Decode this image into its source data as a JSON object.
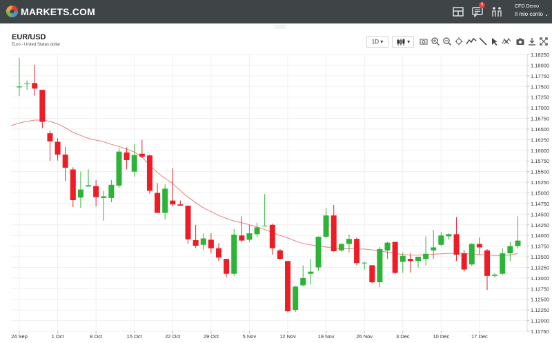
{
  "header": {
    "brand": "MARKETS.COM",
    "notification_count": "6",
    "account_mode": "CFD Demo",
    "account_name": "Il mio conto"
  },
  "instrument": {
    "symbol": "EUR/USD",
    "description": "Euro - United States dollar"
  },
  "toolbar": {
    "timeframe": "1D",
    "icons": [
      "chart-type-icon",
      "screenshot-icon",
      "zoom-in-icon",
      "zoom-out-icon",
      "crosshair-icon",
      "indicator-icon",
      "draw-line-icon",
      "cursor-icon",
      "remove-drawings-icon",
      "camera-icon",
      "download-icon",
      "fullscreen-icon"
    ]
  },
  "colors": {
    "up": "#2db337",
    "down": "#ee1c25",
    "ma_line": "#ef7b7b",
    "topbar": "#3f4447"
  },
  "chart_data": {
    "type": "candlestick",
    "title": "EUR/USD",
    "ylim": [
      1.1175,
      1.1825
    ],
    "y_ticks": [
      "1.18250",
      "1.18000",
      "1.17750",
      "1.17500",
      "1.17250",
      "1.17000",
      "1.16750",
      "1.16500",
      "1.16250",
      "1.16000",
      "1.15750",
      "1.15500",
      "1.15250",
      "1.15000",
      "1.14750",
      "1.14500",
      "1.14250",
      "1.14000",
      "1.13750",
      "1.13500",
      "1.13250",
      "1.13000",
      "1.12750",
      "1.12500",
      "1.12250",
      "1.12000",
      "1.11750"
    ],
    "x_ticks": [
      {
        "label": "24 Sep",
        "index": 0
      },
      {
        "label": "1 Oct",
        "index": 5
      },
      {
        "label": "8 Oct",
        "index": 10
      },
      {
        "label": "15 Oct",
        "index": 15
      },
      {
        "label": "22 Oct",
        "index": 20
      },
      {
        "label": "29 Oct",
        "index": 25
      },
      {
        "label": "5 Nov",
        "index": 30
      },
      {
        "label": "12 Nov",
        "index": 35
      },
      {
        "label": "19 Nov",
        "index": 40
      },
      {
        "label": "26 Nov",
        "index": 45
      },
      {
        "label": "3 Dec",
        "index": 50
      },
      {
        "label": "10 Dec",
        "index": 55
      },
      {
        "label": "17 Dec",
        "index": 60
      }
    ],
    "candles": [
      {
        "o": 1.1748,
        "h": 1.1817,
        "l": 1.1728,
        "c": 1.175
      },
      {
        "o": 1.1756,
        "h": 1.1764,
        "l": 1.1742,
        "c": 1.1757
      },
      {
        "o": 1.1758,
        "h": 1.1801,
        "l": 1.1728,
        "c": 1.1745
      },
      {
        "o": 1.1742,
        "h": 1.1742,
        "l": 1.1652,
        "c": 1.1667
      },
      {
        "o": 1.164,
        "h": 1.1646,
        "l": 1.1575,
        "c": 1.1621
      },
      {
        "o": 1.162,
        "h": 1.1628,
        "l": 1.1576,
        "c": 1.159
      },
      {
        "o": 1.159,
        "h": 1.1608,
        "l": 1.1528,
        "c": 1.1559
      },
      {
        "o": 1.1555,
        "h": 1.156,
        "l": 1.1467,
        "c": 1.1483
      },
      {
        "o": 1.1489,
        "h": 1.155,
        "l": 1.1465,
        "c": 1.1508
      },
      {
        "o": 1.1515,
        "h": 1.1555,
        "l": 1.1515,
        "c": 1.1518
      },
      {
        "o": 1.1516,
        "h": 1.153,
        "l": 1.1468,
        "c": 1.149
      },
      {
        "o": 1.1488,
        "h": 1.1505,
        "l": 1.1435,
        "c": 1.1492
      },
      {
        "o": 1.1488,
        "h": 1.153,
        "l": 1.1478,
        "c": 1.1519
      },
      {
        "o": 1.1517,
        "h": 1.1605,
        "l": 1.1512,
        "c": 1.1597
      },
      {
        "o": 1.1595,
        "h": 1.1607,
        "l": 1.1555,
        "c": 1.1577
      },
      {
        "o": 1.155,
        "h": 1.1615,
        "l": 1.1538,
        "c": 1.1589
      },
      {
        "o": 1.1592,
        "h": 1.1625,
        "l": 1.1582,
        "c": 1.1585
      },
      {
        "o": 1.1588,
        "h": 1.159,
        "l": 1.1498,
        "c": 1.1505
      },
      {
        "o": 1.15,
        "h": 1.1523,
        "l": 1.1455,
        "c": 1.1453
      },
      {
        "o": 1.1453,
        "h": 1.152,
        "l": 1.1437,
        "c": 1.151
      },
      {
        "o": 1.1482,
        "h": 1.1558,
        "l": 1.1468,
        "c": 1.1473
      },
      {
        "o": 1.1473,
        "h": 1.1482,
        "l": 1.147,
        "c": 1.147
      },
      {
        "o": 1.147,
        "h": 1.147,
        "l": 1.138,
        "c": 1.1391
      },
      {
        "o": 1.1389,
        "h": 1.1425,
        "l": 1.137,
        "c": 1.1376
      },
      {
        "o": 1.1378,
        "h": 1.1405,
        "l": 1.1365,
        "c": 1.1393
      },
      {
        "o": 1.139,
        "h": 1.1405,
        "l": 1.1358,
        "c": 1.137
      },
      {
        "o": 1.137,
        "h": 1.1382,
        "l": 1.134,
        "c": 1.1348
      },
      {
        "o": 1.1345,
        "h": 1.1345,
        "l": 1.1302,
        "c": 1.131
      },
      {
        "o": 1.131,
        "h": 1.1415,
        "l": 1.1305,
        "c": 1.1402
      },
      {
        "o": 1.14,
        "h": 1.1445,
        "l": 1.1385,
        "c": 1.1388
      },
      {
        "o": 1.139,
        "h": 1.1425,
        "l": 1.1385,
        "c": 1.1405
      },
      {
        "o": 1.1403,
        "h": 1.143,
        "l": 1.1395,
        "c": 1.1419
      },
      {
        "o": 1.1423,
        "h": 1.1497,
        "l": 1.1423,
        "c": 1.1423
      },
      {
        "o": 1.1425,
        "h": 1.1428,
        "l": 1.1355,
        "c": 1.137
      },
      {
        "o": 1.1365,
        "h": 1.1368,
        "l": 1.1343,
        "c": 1.1345
      },
      {
        "o": 1.134,
        "h": 1.134,
        "l": 1.122,
        "c": 1.1222
      },
      {
        "o": 1.1225,
        "h": 1.1282,
        "l": 1.122,
        "c": 1.128
      },
      {
        "o": 1.1283,
        "h": 1.133,
        "l": 1.128,
        "c": 1.13
      },
      {
        "o": 1.131,
        "h": 1.1345,
        "l": 1.1285,
        "c": 1.1315
      },
      {
        "o": 1.1325,
        "h": 1.1398,
        "l": 1.1318,
        "c": 1.1397
      },
      {
        "o": 1.1397,
        "h": 1.1465,
        "l": 1.1393,
        "c": 1.1447
      },
      {
        "o": 1.1447,
        "h": 1.1472,
        "l": 1.1362,
        "c": 1.1363
      },
      {
        "o": 1.1365,
        "h": 1.1382,
        "l": 1.1362,
        "c": 1.138
      },
      {
        "o": 1.138,
        "h": 1.1402,
        "l": 1.136,
        "c": 1.1392
      },
      {
        "o": 1.1392,
        "h": 1.1395,
        "l": 1.133,
        "c": 1.1335
      },
      {
        "o": 1.1335,
        "h": 1.1338,
        "l": 1.132,
        "c": 1.1336
      },
      {
        "o": 1.133,
        "h": 1.133,
        "l": 1.1288,
        "c": 1.129
      },
      {
        "o": 1.129,
        "h": 1.1373,
        "l": 1.1278,
        "c": 1.1368
      },
      {
        "o": 1.1365,
        "h": 1.1385,
        "l": 1.1345,
        "c": 1.1383
      },
      {
        "o": 1.1385,
        "h": 1.1385,
        "l": 1.131,
        "c": 1.1312
      },
      {
        "o": 1.1338,
        "h": 1.136,
        "l": 1.1312,
        "c": 1.1352
      },
      {
        "o": 1.1345,
        "h": 1.1358,
        "l": 1.1313,
        "c": 1.134
      },
      {
        "o": 1.134,
        "h": 1.135,
        "l": 1.1325,
        "c": 1.135
      },
      {
        "o": 1.1345,
        "h": 1.1398,
        "l": 1.133,
        "c": 1.1357
      },
      {
        "o": 1.1365,
        "h": 1.1413,
        "l": 1.1345,
        "c": 1.1372
      },
      {
        "o": 1.1378,
        "h": 1.1408,
        "l": 1.1375,
        "c": 1.14
      },
      {
        "o": 1.1398,
        "h": 1.1405,
        "l": 1.139,
        "c": 1.1403
      },
      {
        "o": 1.1403,
        "h": 1.1443,
        "l": 1.134,
        "c": 1.1355
      },
      {
        "o": 1.1358,
        "h": 1.1366,
        "l": 1.1315,
        "c": 1.132
      },
      {
        "o": 1.1332,
        "h": 1.1382,
        "l": 1.1328,
        "c": 1.138
      },
      {
        "o": 1.138,
        "h": 1.1395,
        "l": 1.1355,
        "c": 1.1372
      },
      {
        "o": 1.1365,
        "h": 1.1368,
        "l": 1.1272,
        "c": 1.1305
      },
      {
        "o": 1.1305,
        "h": 1.1312,
        "l": 1.1302,
        "c": 1.1308
      },
      {
        "o": 1.131,
        "h": 1.137,
        "l": 1.1308,
        "c": 1.1358
      },
      {
        "o": 1.1358,
        "h": 1.1385,
        "l": 1.134,
        "c": 1.1375
      },
      {
        "o": 1.1375,
        "h": 1.1445,
        "l": 1.137,
        "c": 1.1388
      }
    ],
    "ma": [
      1.1664,
      1.1668,
      1.1671,
      1.1671,
      1.1668,
      1.1662,
      1.1653,
      1.1642,
      1.1635,
      1.1628,
      1.1624,
      1.162,
      1.1614,
      1.1609,
      1.1603,
      1.1596,
      1.1584,
      1.1565,
      1.1548,
      1.1534,
      1.1522,
      1.1505,
      1.149,
      1.1477,
      1.1465,
      1.1456,
      1.1447,
      1.144,
      1.1434,
      1.143,
      1.1425,
      1.142,
      1.1414,
      1.1407,
      1.14,
      1.1394,
      1.1387,
      1.1381,
      1.1378,
      1.1375,
      1.1373,
      1.137,
      1.1369,
      1.1369,
      1.1368,
      1.1368,
      1.1366,
      1.1363,
      1.1361,
      1.1358,
      1.1355,
      1.1354,
      1.1354,
      1.1354,
      1.1356,
      1.1357,
      1.1358,
      1.1358,
      1.1358,
      1.1356,
      1.1355,
      1.1354,
      1.1353,
      1.1353,
      1.1354,
      1.1358
    ]
  }
}
